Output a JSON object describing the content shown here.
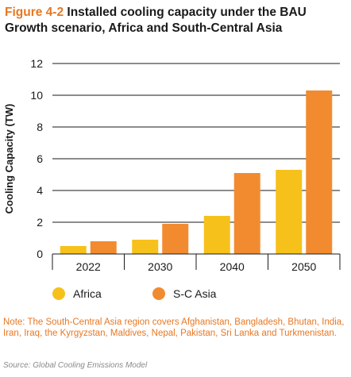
{
  "figure": {
    "label": "Figure 4-2",
    "title": "Installed cooling capacity under the BAU Growth scenario, Africa and South-Central Asia"
  },
  "note": "Note: The South-Central Asia region covers Afghanistan, Bangladesh, Bhutan, India, Iran, Iraq, the Kyrgyzstan, Maldives, Nepal, Pakistan, Sri Lanka and Turkmenistan.",
  "source": "Source: Global Cooling Emissions Model",
  "colors": {
    "africa": "#f7c11b",
    "sc_asia": "#f28b30",
    "grid": "#1a1a1a",
    "text": "#1a1a1a"
  },
  "chart_data": {
    "type": "bar",
    "title": "",
    "xlabel": "",
    "ylabel": "Cooling Capacity (TW)",
    "ylim": [
      0,
      12
    ],
    "yticks": [
      "0",
      "2",
      "4",
      "6",
      "8",
      "10",
      "12"
    ],
    "categories": [
      "2022",
      "2030",
      "2040",
      "2050"
    ],
    "series": [
      {
        "name": "Africa",
        "values": [
          0.5,
          0.9,
          2.4,
          5.3
        ]
      },
      {
        "name": "S-C Asia",
        "values": [
          0.8,
          1.9,
          5.1,
          10.3
        ]
      }
    ],
    "grid": true,
    "legend": "bottom-left"
  }
}
